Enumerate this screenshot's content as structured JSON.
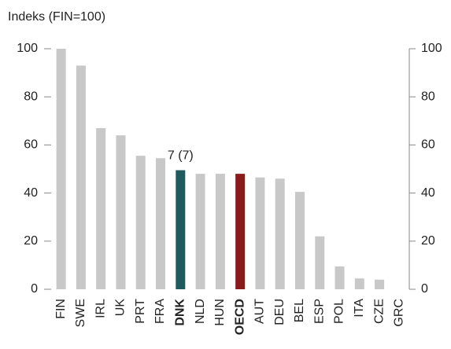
{
  "chart_data": {
    "type": "bar",
    "y_axis_label": "Indeks (FIN=100)",
    "categories": [
      "FIN",
      "SWE",
      "IRL",
      "UK",
      "PRT",
      "FRA",
      "DNK",
      "NLD",
      "HUN",
      "OECD",
      "AUT",
      "DEU",
      "BEL",
      "ESP",
      "POL",
      "ITA",
      "CZE",
      "GRC"
    ],
    "values": [
      100,
      93,
      67,
      64,
      55.5,
      54.5,
      49.5,
      48,
      48,
      48,
      46.5,
      46,
      40.5,
      22,
      9.5,
      4.5,
      4,
      0
    ],
    "colors": [
      "#c8c8c8",
      "#c8c8c8",
      "#c8c8c8",
      "#c8c8c8",
      "#c8c8c8",
      "#c8c8c8",
      "#1f5a5e",
      "#c8c8c8",
      "#c8c8c8",
      "#8b1a1a",
      "#c8c8c8",
      "#c8c8c8",
      "#c8c8c8",
      "#c8c8c8",
      "#c8c8c8",
      "#c8c8c8",
      "#c8c8c8",
      "#c8c8c8"
    ],
    "bold_labels": [
      false,
      false,
      false,
      false,
      false,
      false,
      true,
      false,
      false,
      true,
      false,
      false,
      false,
      false,
      false,
      false,
      false,
      false
    ],
    "annotation": {
      "text": "7 (7)",
      "category": "DNK"
    },
    "ylim": [
      0,
      100
    ],
    "yticks": [
      0,
      20,
      40,
      60,
      80,
      100
    ],
    "y2lim": [
      0,
      100
    ],
    "y2ticks": [
      0,
      20,
      40,
      60,
      80,
      100
    ],
    "grid": false
  }
}
